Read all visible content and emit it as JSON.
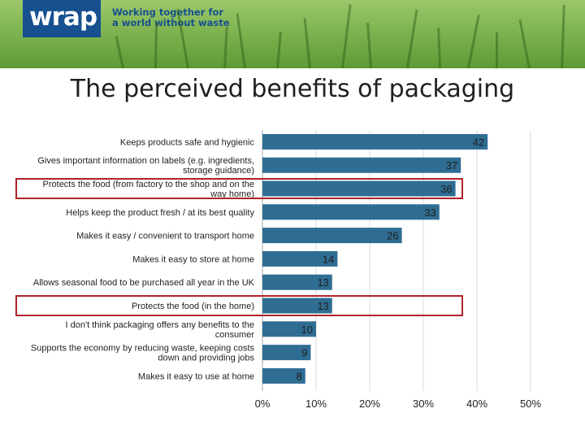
{
  "header": {
    "logo": "wrap",
    "tagline_line1": "Working together for",
    "tagline_line2": "a world without waste"
  },
  "slide": {
    "title": "The perceived benefits of packaging"
  },
  "colors": {
    "bar": "#2f6d93",
    "highlight": "#b0242a",
    "grid": "#d9d9d9",
    "banner": "#7fb451",
    "logo_bg": "#17508f"
  },
  "chart_data": {
    "type": "bar",
    "orientation": "horizontal",
    "categories": [
      "Keeps products safe and hygienic",
      "Gives important information on labels (e.g. ingredients, storage guidance)",
      "Protects the food  (from factory to the shop and on the way home)",
      "Helps keep the product fresh / at its best quality",
      "Makes it easy / convenient to transport home",
      "Makes it easy to store at home",
      "Allows seasonal food to be purchased all year in the UK",
      "Protects the food (in the home)",
      "I don't think packaging offers any benefits to the consumer",
      "Supports the economy by reducing waste, keeping costs down and providing jobs",
      "Makes it easy to use at home"
    ],
    "label_lines": [
      [
        "Keeps products safe and hygienic"
      ],
      [
        "Gives important information on labels (e.g. ingredients,",
        "storage guidance)"
      ],
      [
        "Protects the food  (from factory to the shop and on the",
        "way home)"
      ],
      [
        "Helps keep the product fresh / at its best quality"
      ],
      [
        "Makes it easy / convenient to transport home"
      ],
      [
        "Makes it easy to store at home"
      ],
      [
        "Allows seasonal food to be purchased all year in the UK"
      ],
      [
        "Protects the food (in the home)"
      ],
      [
        "I don't think packaging offers any benefits to the",
        "consumer"
      ],
      [
        "Supports the economy by reducing waste, keeping costs",
        "down and providing jobs"
      ],
      [
        "Makes it easy to use at home"
      ]
    ],
    "values": [
      42,
      37,
      36,
      33,
      26,
      14,
      13,
      13,
      10,
      9,
      8
    ],
    "highlighted": [
      2,
      7
    ],
    "x_ticks": [
      "0%",
      "10%",
      "20%",
      "30%",
      "40%",
      "50%"
    ],
    "xlim": [
      0,
      50
    ],
    "grid": true,
    "title": "",
    "xlabel": "",
    "ylabel": ""
  }
}
